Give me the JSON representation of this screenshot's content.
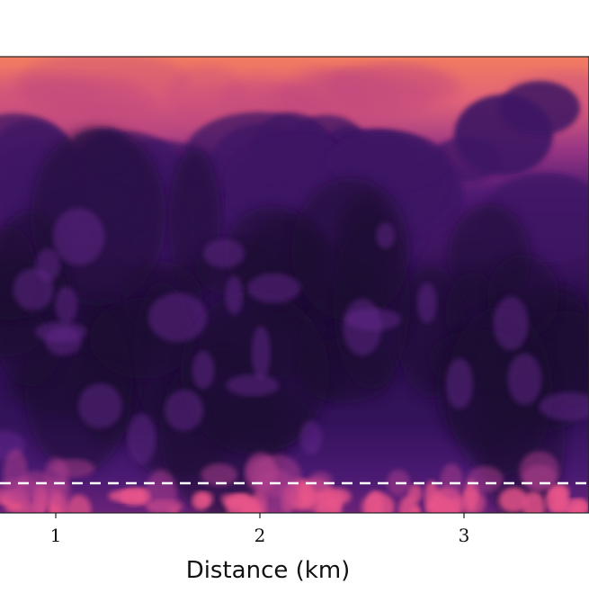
{
  "chart_data": {
    "type": "heatmap",
    "title": "",
    "xlabel": "Distance (km)",
    "ylabel": "",
    "x_ticks": [
      1,
      2,
      3
    ],
    "x_tick_labels": [
      "1",
      "2",
      "3"
    ],
    "xlim": [
      0.75,
      3.6
    ],
    "colormap": "magma",
    "dashed_line": {
      "color": "#ffffff",
      "style": "dashed"
    },
    "colors": {
      "top_band": "#f07a62",
      "upper_fade": "#c2487e",
      "mid_plume": "#3d1664",
      "deep_core": "#1a0830",
      "surface_hot": "#e8558a"
    }
  }
}
